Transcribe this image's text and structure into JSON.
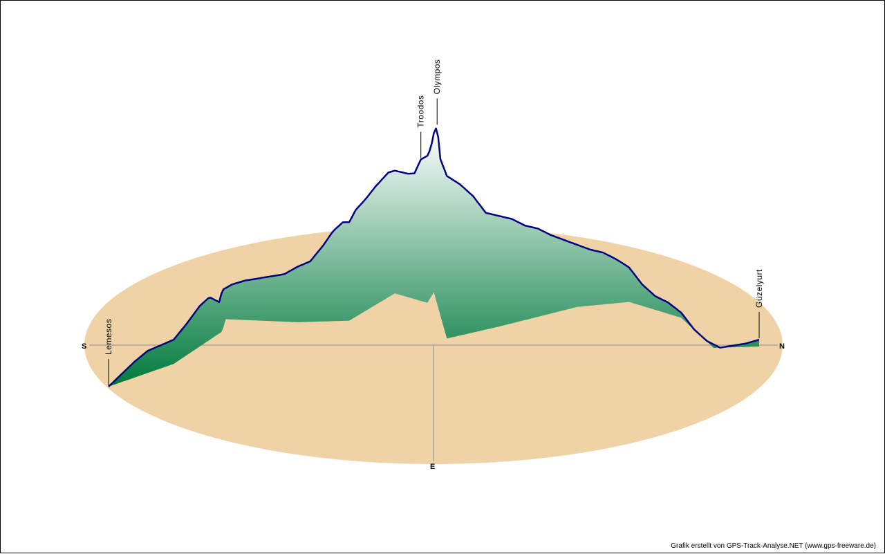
{
  "colors": {
    "ground": "#EFD3A7",
    "axis": "#8A8AA0",
    "profile_line": "#000080",
    "fill_top": "#FFFFFF",
    "fill_bottom": "#007A3D"
  },
  "compass": {
    "south": "S",
    "north": "N",
    "east": "E"
  },
  "credit": "Grafik erstellt von GPS-Track-Analyse.NET (www.gps-freeware.de)",
  "chart_data": {
    "type": "area",
    "title": "",
    "xlabel": "",
    "ylabel": "",
    "grid": false,
    "legend": "none",
    "annotations": [
      {
        "label": "Lemesos",
        "position": 0.0
      },
      {
        "label": "Troodos",
        "position": 0.48
      },
      {
        "label": "Olympos",
        "position": 0.505
      },
      {
        "label": "Güzelyurt",
        "position": 1.0
      }
    ],
    "profile": {
      "x": [
        0.0,
        0.02,
        0.04,
        0.06,
        0.08,
        0.1,
        0.12,
        0.14,
        0.155,
        0.17,
        0.175,
        0.19,
        0.21,
        0.23,
        0.25,
        0.27,
        0.29,
        0.31,
        0.33,
        0.345,
        0.36,
        0.37,
        0.38,
        0.395,
        0.41,
        0.42,
        0.43,
        0.44,
        0.45,
        0.46,
        0.47,
        0.48,
        0.49,
        0.495,
        0.5,
        0.505,
        0.51,
        0.52,
        0.54,
        0.56,
        0.58,
        0.6,
        0.62,
        0.64,
        0.66,
        0.68,
        0.7,
        0.72,
        0.74,
        0.76,
        0.78,
        0.8,
        0.82,
        0.84,
        0.86,
        0.88,
        0.9,
        0.92,
        0.94,
        0.96,
        0.98,
        1.0
      ],
      "y": [
        0,
        35,
        70,
        100,
        115,
        130,
        175,
        225,
        250,
        235,
        270,
        285,
        295,
        300,
        305,
        310,
        330,
        345,
        390,
        430,
        455,
        455,
        490,
        520,
        555,
        575,
        595,
        600,
        595,
        590,
        590,
        630,
        640,
        660,
        705,
        725,
        630,
        580,
        555,
        520,
        470,
        460,
        450,
        430,
        420,
        400,
        385,
        370,
        355,
        345,
        325,
        300,
        250,
        215,
        195,
        165,
        115,
        80,
        60,
        65,
        70,
        80
      ]
    },
    "ground_level": {
      "x": [
        0.0,
        0.1,
        0.175,
        0.18,
        0.29,
        0.37,
        0.44,
        0.49,
        0.5,
        0.52,
        0.6,
        0.72,
        0.8,
        0.88,
        0.93,
        1.0
      ],
      "y": [
        0,
        60,
        150,
        185,
        170,
        170,
        245,
        215,
        245,
        110,
        140,
        190,
        200,
        150,
        60,
        60
      ]
    }
  }
}
